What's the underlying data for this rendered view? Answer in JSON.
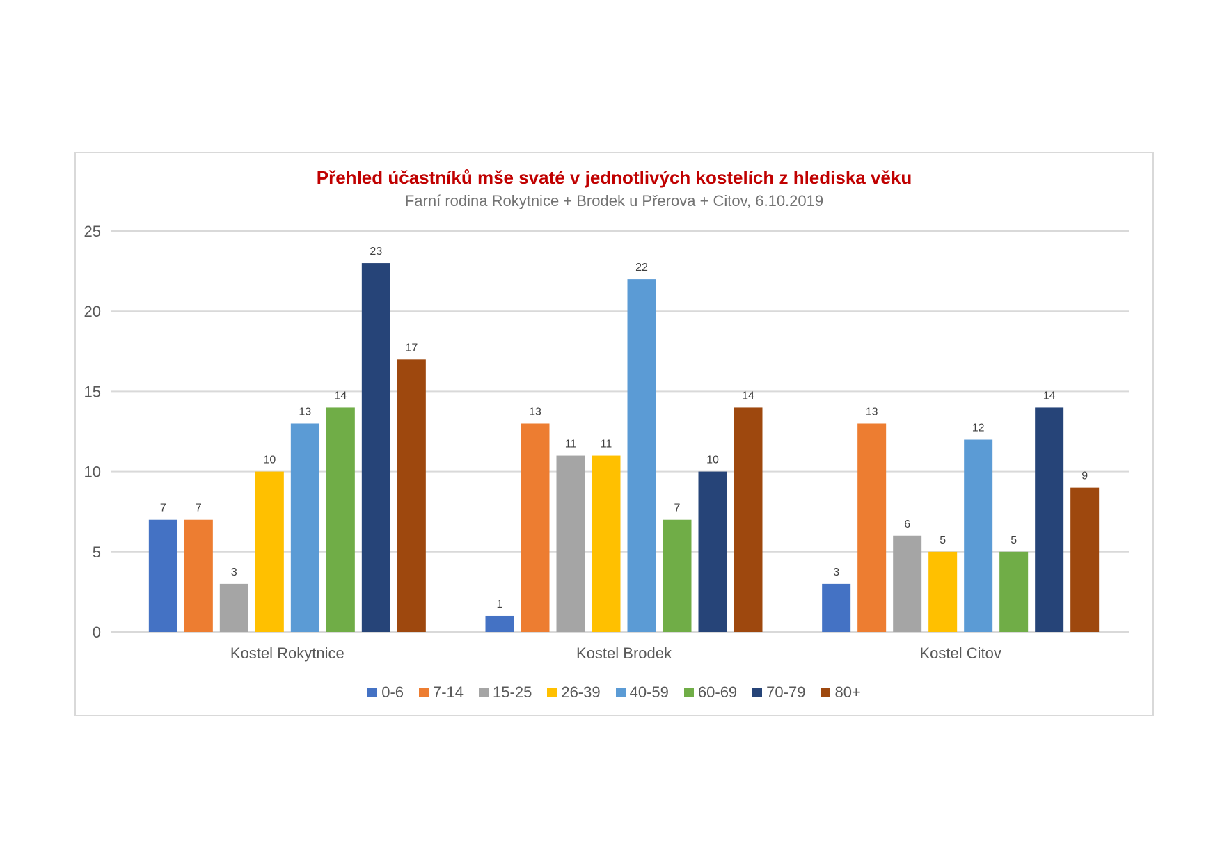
{
  "chart_data": {
    "type": "bar",
    "title": "Přehled účastníků mše svaté v jednotlivých kostelích z hlediska věku",
    "subtitle": "Farní rodina Rokytnice + Brodek u Přerova + Citov, 6.10.2019",
    "categories": [
      "Kostel Rokytnice",
      "Kostel Brodek",
      "Kostel Citov"
    ],
    "series": [
      {
        "name": "0-6",
        "color": "#4472c4",
        "values": [
          7,
          1,
          3
        ]
      },
      {
        "name": "7-14",
        "color": "#ed7d31",
        "values": [
          7,
          13,
          13
        ]
      },
      {
        "name": "15-25",
        "color": "#a5a5a5",
        "values": [
          3,
          11,
          6
        ]
      },
      {
        "name": "26-39",
        "color": "#ffc000",
        "values": [
          10,
          11,
          5
        ]
      },
      {
        "name": "40-59",
        "color": "#5b9bd5",
        "values": [
          13,
          22,
          12
        ]
      },
      {
        "name": "60-69",
        "color": "#70ad47",
        "values": [
          14,
          7,
          5
        ]
      },
      {
        "name": "70-79",
        "color": "#264478",
        "values": [
          23,
          10,
          14
        ]
      },
      {
        "name": "80+",
        "color": "#9e480e",
        "values": [
          17,
          14,
          9
        ]
      }
    ],
    "yticks": [
      "0",
      "5",
      "10",
      "15",
      "20",
      "25"
    ],
    "ylim": [
      0,
      25
    ],
    "grid": true,
    "legend": "bottom"
  }
}
